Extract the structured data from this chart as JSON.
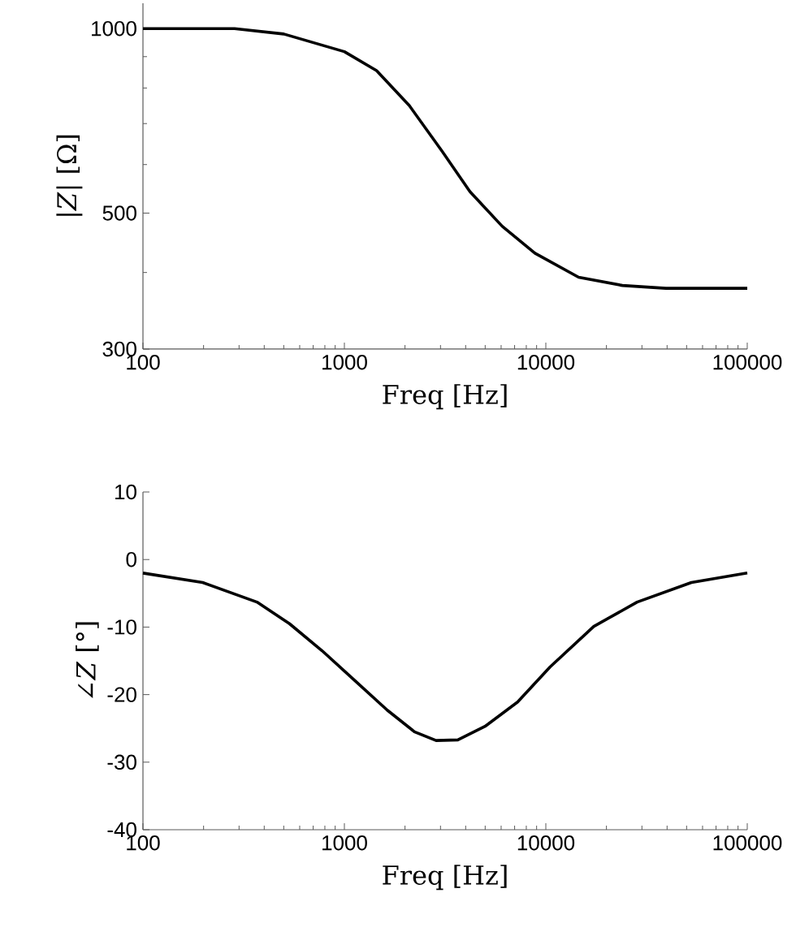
{
  "chart_data": [
    {
      "type": "line",
      "xlabel": "Freq [Hz]",
      "ylabel": "|*Z*| [Ω]",
      "log": "xy",
      "xlim": [
        100,
        100000
      ],
      "ylim": [
        300,
        1100
      ],
      "xticks": [
        100,
        1000,
        10000,
        100000
      ],
      "yticks": [
        300,
        500,
        1000
      ],
      "x": [
        100,
        285,
        500,
        1000,
        1445,
        2100,
        3055,
        4200,
        6070,
        8830,
        14550,
        24000,
        39500,
        100000
      ],
      "series": [
        {
          "color": "#000000",
          "values": [
            1000,
            1000,
            980,
            917,
            854,
            749,
            631,
            542,
            476,
            430,
            393,
            381,
            377,
            377
          ]
        }
      ]
    },
    {
      "type": "line",
      "xlabel": "Freq [Hz]",
      "ylabel": "∠*Z* [°]",
      "log": "x",
      "xlim": [
        100,
        100000
      ],
      "ylim": [
        -40,
        10
      ],
      "xticks": [
        100,
        1000,
        10000,
        100000
      ],
      "yticks": [
        -40,
        -30,
        -20,
        -10,
        0,
        10
      ],
      "x": [
        100,
        198,
        368,
        534,
        775,
        1125,
        1633,
        2227,
        2853,
        3657,
        4990,
        7240,
        10500,
        17300,
        28400,
        52800,
        100000
      ],
      "series": [
        {
          "color": "#000000",
          "values": [
            -2.0,
            -3.4,
            -6.3,
            -9.5,
            -13.5,
            -17.9,
            -22.3,
            -25.5,
            -26.8,
            -26.7,
            -24.7,
            -21.1,
            -15.9,
            -9.9,
            -6.3,
            -3.4,
            -2.0
          ]
        }
      ]
    }
  ]
}
